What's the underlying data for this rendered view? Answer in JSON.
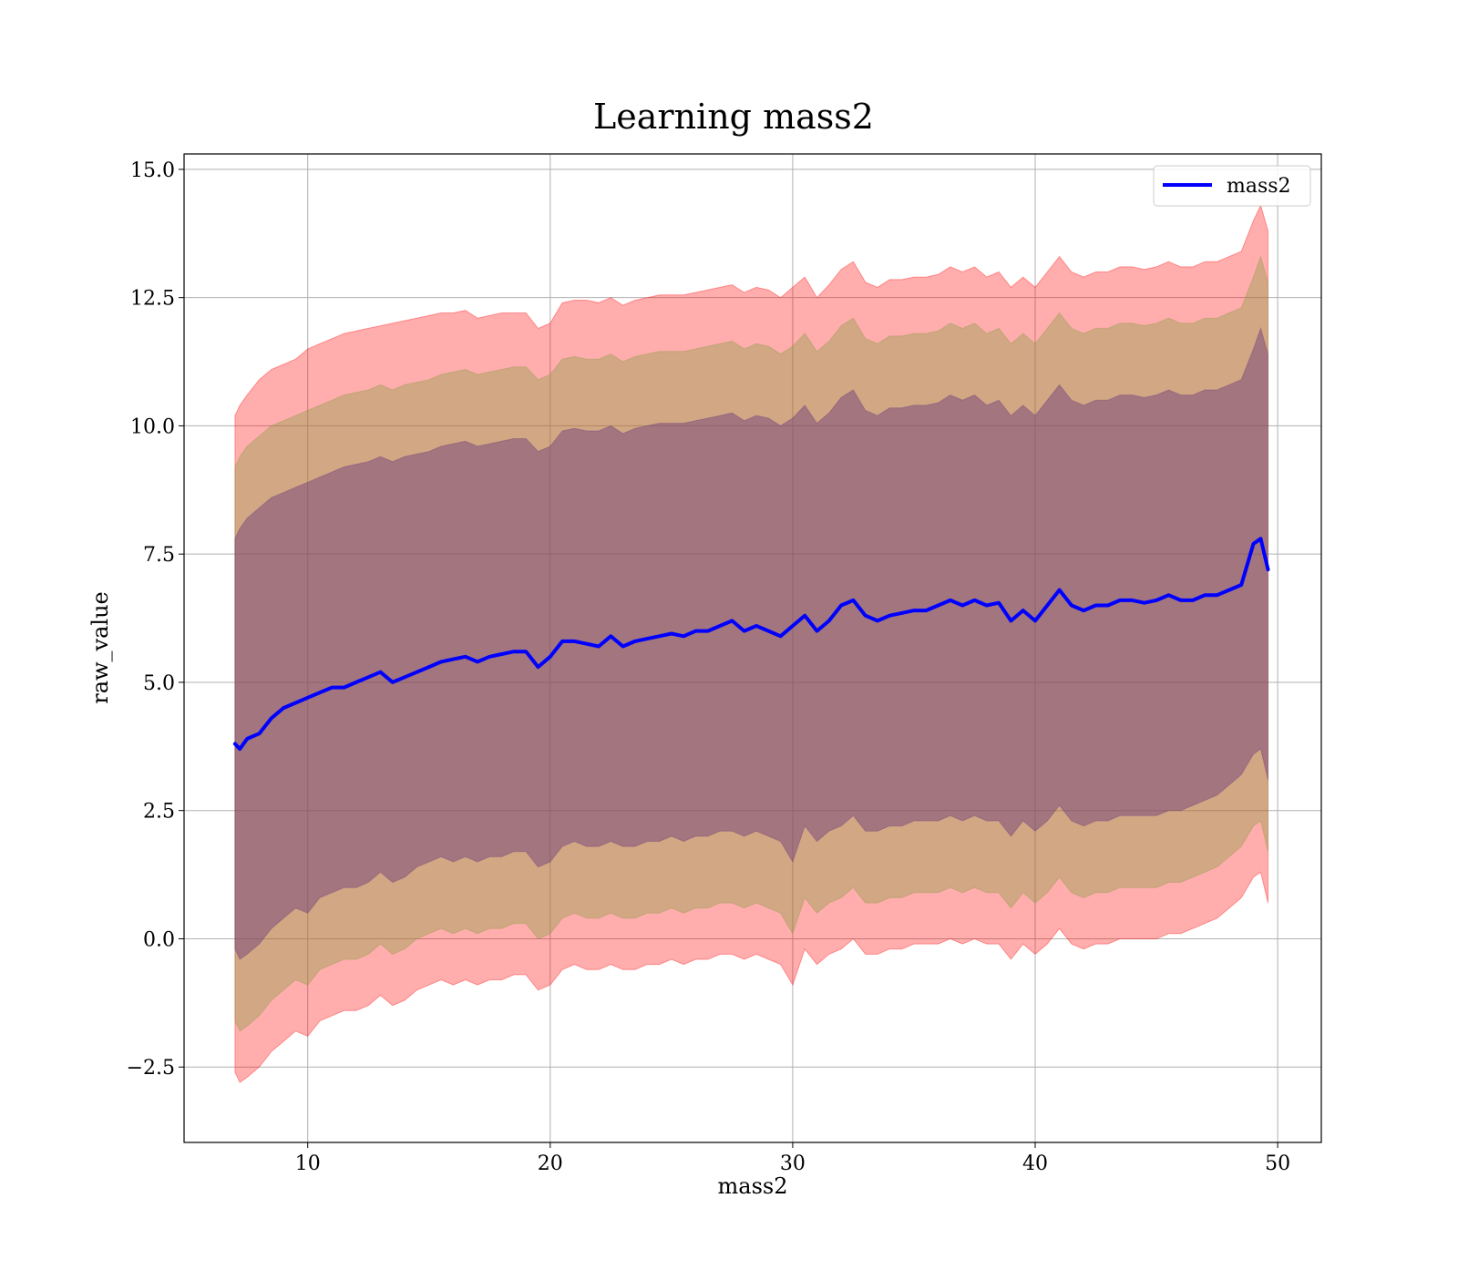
{
  "chart_data": {
    "type": "area",
    "title": "Learning mass2",
    "xlabel": "mass2",
    "ylabel": "raw_value",
    "xlim": [
      4.9,
      51.8
    ],
    "ylim": [
      -3.97,
      15.3
    ],
    "grid": true,
    "legend_position": "upper right",
    "x_ticks": [
      10,
      20,
      30,
      40,
      50
    ],
    "y_ticks": [
      -2.5,
      0.0,
      2.5,
      5.0,
      7.5,
      10.0,
      12.5,
      15.0
    ],
    "x_tick_labels": [
      "10",
      "20",
      "30",
      "40",
      "50"
    ],
    "y_tick_labels": [
      "−2.5",
      "0.0",
      "2.5",
      "5.0",
      "7.5",
      "10.0",
      "12.5",
      "15.0"
    ],
    "legend": [
      {
        "label": "mass2",
        "color": "#0000ff"
      }
    ],
    "mean_series": {
      "name": "mass2",
      "color": "#0000ff",
      "x": [
        7.0,
        7.2,
        7.5,
        8.0,
        8.5,
        9.0,
        9.5,
        10.0,
        10.5,
        11.0,
        11.5,
        12.0,
        12.5,
        13.0,
        13.5,
        14.0,
        14.5,
        15.0,
        15.5,
        16.0,
        16.5,
        17.0,
        17.5,
        18.0,
        18.5,
        19.0,
        19.5,
        20.0,
        20.5,
        21.0,
        21.5,
        22.0,
        22.5,
        23.0,
        23.5,
        24.0,
        24.5,
        25.0,
        25.5,
        26.0,
        26.5,
        27.0,
        27.5,
        28.0,
        28.5,
        29.0,
        29.5,
        30.0,
        30.5,
        31.0,
        31.5,
        32.0,
        32.5,
        33.0,
        33.5,
        34.0,
        34.5,
        35.0,
        35.5,
        36.0,
        36.5,
        37.0,
        37.5,
        38.0,
        38.5,
        39.0,
        39.5,
        40.0,
        40.5,
        41.0,
        41.5,
        42.0,
        42.5,
        43.0,
        43.5,
        44.0,
        44.5,
        45.0,
        45.5,
        46.0,
        46.5,
        47.0,
        47.5,
        48.0,
        48.5,
        49.0,
        49.3,
        49.6
      ],
      "y": [
        3.8,
        3.7,
        3.9,
        4.0,
        4.3,
        4.5,
        4.6,
        4.7,
        4.8,
        4.9,
        4.9,
        5.0,
        5.1,
        5.2,
        5.0,
        5.1,
        5.2,
        5.3,
        5.4,
        5.45,
        5.5,
        5.4,
        5.5,
        5.55,
        5.6,
        5.6,
        5.3,
        5.5,
        5.8,
        5.8,
        5.75,
        5.7,
        5.9,
        5.7,
        5.8,
        5.85,
        5.9,
        5.95,
        5.9,
        6.0,
        6.0,
        6.1,
        6.2,
        6.0,
        6.1,
        6.0,
        5.9,
        6.1,
        6.3,
        6.0,
        6.2,
        6.5,
        6.6,
        6.3,
        6.2,
        6.3,
        6.35,
        6.4,
        6.4,
        6.5,
        6.6,
        6.5,
        6.6,
        6.5,
        6.55,
        6.2,
        6.4,
        6.2,
        6.5,
        6.8,
        6.5,
        6.4,
        6.5,
        6.5,
        6.6,
        6.6,
        6.55,
        6.6,
        6.7,
        6.6,
        6.6,
        6.7,
        6.7,
        6.8,
        6.9,
        7.7,
        7.8,
        7.2
      ]
    },
    "bands": [
      {
        "name": "outer",
        "color": "#ff0000",
        "opacity": 0.32,
        "upper": [
          10.2,
          10.4,
          10.6,
          10.9,
          11.1,
          11.2,
          11.3,
          11.5,
          11.6,
          11.7,
          11.8,
          11.85,
          11.9,
          11.95,
          12.0,
          12.05,
          12.1,
          12.15,
          12.2,
          12.2,
          12.25,
          12.1,
          12.15,
          12.2,
          12.2,
          12.2,
          11.9,
          12.0,
          12.4,
          12.45,
          12.45,
          12.4,
          12.5,
          12.35,
          12.45,
          12.5,
          12.55,
          12.55,
          12.55,
          12.6,
          12.65,
          12.7,
          12.75,
          12.6,
          12.7,
          12.65,
          12.5,
          12.7,
          12.9,
          12.5,
          12.75,
          13.05,
          13.2,
          12.8,
          12.7,
          12.85,
          12.85,
          12.9,
          12.9,
          12.95,
          13.1,
          13.0,
          13.1,
          12.9,
          13.0,
          12.7,
          12.9,
          12.7,
          13.0,
          13.3,
          13.0,
          12.9,
          13.0,
          13.0,
          13.1,
          13.1,
          13.05,
          13.1,
          13.2,
          13.1,
          13.1,
          13.2,
          13.2,
          13.3,
          13.4,
          14.0,
          14.3,
          13.8
        ],
        "lower": [
          -2.6,
          -2.8,
          -2.7,
          -2.5,
          -2.2,
          -2.0,
          -1.8,
          -1.9,
          -1.6,
          -1.5,
          -1.4,
          -1.4,
          -1.3,
          -1.1,
          -1.3,
          -1.2,
          -1.0,
          -0.9,
          -0.8,
          -0.9,
          -0.8,
          -0.9,
          -0.8,
          -0.8,
          -0.7,
          -0.7,
          -1.0,
          -0.9,
          -0.6,
          -0.5,
          -0.6,
          -0.6,
          -0.5,
          -0.6,
          -0.6,
          -0.5,
          -0.5,
          -0.4,
          -0.5,
          -0.4,
          -0.4,
          -0.3,
          -0.3,
          -0.4,
          -0.3,
          -0.4,
          -0.5,
          -0.9,
          -0.2,
          -0.5,
          -0.3,
          -0.2,
          0.0,
          -0.3,
          -0.3,
          -0.2,
          -0.2,
          -0.1,
          -0.1,
          -0.1,
          0.0,
          -0.1,
          0.0,
          -0.1,
          -0.1,
          -0.4,
          -0.1,
          -0.3,
          -0.1,
          0.2,
          -0.1,
          -0.2,
          -0.1,
          -0.1,
          0.0,
          0.0,
          0.0,
          0.0,
          0.1,
          0.1,
          0.2,
          0.3,
          0.4,
          0.6,
          0.8,
          1.2,
          1.3,
          0.7
        ]
      },
      {
        "name": "middle",
        "color": "#8c9e45",
        "opacity": 0.4,
        "upper": [
          9.2,
          9.4,
          9.6,
          9.8,
          10.0,
          10.1,
          10.2,
          10.3,
          10.4,
          10.5,
          10.6,
          10.65,
          10.7,
          10.8,
          10.7,
          10.8,
          10.85,
          10.9,
          11.0,
          11.05,
          11.1,
          11.0,
          11.05,
          11.1,
          11.15,
          11.15,
          10.9,
          11.0,
          11.3,
          11.35,
          11.3,
          11.3,
          11.4,
          11.25,
          11.35,
          11.4,
          11.45,
          11.45,
          11.45,
          11.5,
          11.55,
          11.6,
          11.65,
          11.5,
          11.6,
          11.55,
          11.4,
          11.55,
          11.8,
          11.45,
          11.65,
          11.95,
          12.1,
          11.7,
          11.6,
          11.75,
          11.75,
          11.8,
          11.8,
          11.85,
          12.0,
          11.9,
          12.0,
          11.8,
          11.9,
          11.6,
          11.8,
          11.6,
          11.9,
          12.2,
          11.9,
          11.8,
          11.9,
          11.9,
          12.0,
          12.0,
          11.95,
          12.0,
          12.1,
          12.0,
          12.0,
          12.1,
          12.1,
          12.2,
          12.3,
          12.9,
          13.3,
          12.8
        ],
        "lower": [
          -1.6,
          -1.8,
          -1.7,
          -1.5,
          -1.2,
          -1.0,
          -0.8,
          -0.9,
          -0.6,
          -0.5,
          -0.4,
          -0.4,
          -0.3,
          -0.1,
          -0.3,
          -0.2,
          0.0,
          0.1,
          0.2,
          0.1,
          0.2,
          0.1,
          0.2,
          0.2,
          0.3,
          0.3,
          0.0,
          0.1,
          0.4,
          0.5,
          0.4,
          0.4,
          0.5,
          0.4,
          0.4,
          0.5,
          0.5,
          0.6,
          0.5,
          0.6,
          0.6,
          0.7,
          0.7,
          0.6,
          0.7,
          0.6,
          0.5,
          0.1,
          0.8,
          0.5,
          0.7,
          0.8,
          1.0,
          0.7,
          0.7,
          0.8,
          0.8,
          0.9,
          0.9,
          0.9,
          1.0,
          0.9,
          1.0,
          0.9,
          0.9,
          0.6,
          0.9,
          0.7,
          0.9,
          1.2,
          0.9,
          0.8,
          0.9,
          0.9,
          1.0,
          1.0,
          1.0,
          1.0,
          1.1,
          1.1,
          1.2,
          1.3,
          1.4,
          1.6,
          1.8,
          2.2,
          2.3,
          1.7
        ]
      },
      {
        "name": "inner",
        "color": "#6b3a7a",
        "opacity": 0.45,
        "upper": [
          7.8,
          8.0,
          8.2,
          8.4,
          8.6,
          8.7,
          8.8,
          8.9,
          9.0,
          9.1,
          9.2,
          9.25,
          9.3,
          9.4,
          9.3,
          9.4,
          9.45,
          9.5,
          9.6,
          9.65,
          9.7,
          9.6,
          9.65,
          9.7,
          9.75,
          9.75,
          9.5,
          9.6,
          9.9,
          9.95,
          9.9,
          9.9,
          10.0,
          9.85,
          9.95,
          10.0,
          10.05,
          10.05,
          10.05,
          10.1,
          10.15,
          10.2,
          10.25,
          10.1,
          10.2,
          10.15,
          10.0,
          10.15,
          10.4,
          10.05,
          10.25,
          10.55,
          10.7,
          10.3,
          10.2,
          10.35,
          10.35,
          10.4,
          10.4,
          10.45,
          10.6,
          10.5,
          10.6,
          10.4,
          10.5,
          10.2,
          10.4,
          10.2,
          10.5,
          10.8,
          10.5,
          10.4,
          10.5,
          10.5,
          10.6,
          10.6,
          10.55,
          10.6,
          10.7,
          10.6,
          10.6,
          10.7,
          10.7,
          10.8,
          10.9,
          11.5,
          11.9,
          11.4
        ],
        "lower": [
          -0.2,
          -0.4,
          -0.3,
          -0.1,
          0.2,
          0.4,
          0.6,
          0.5,
          0.8,
          0.9,
          1.0,
          1.0,
          1.1,
          1.3,
          1.1,
          1.2,
          1.4,
          1.5,
          1.6,
          1.5,
          1.6,
          1.5,
          1.6,
          1.6,
          1.7,
          1.7,
          1.4,
          1.5,
          1.8,
          1.9,
          1.8,
          1.8,
          1.9,
          1.8,
          1.8,
          1.9,
          1.9,
          2.0,
          1.9,
          2.0,
          2.0,
          2.1,
          2.1,
          2.0,
          2.1,
          2.0,
          1.9,
          1.5,
          2.2,
          1.9,
          2.1,
          2.2,
          2.4,
          2.1,
          2.1,
          2.2,
          2.2,
          2.3,
          2.3,
          2.3,
          2.4,
          2.3,
          2.4,
          2.3,
          2.3,
          2.0,
          2.3,
          2.1,
          2.3,
          2.6,
          2.3,
          2.2,
          2.3,
          2.3,
          2.4,
          2.4,
          2.4,
          2.4,
          2.5,
          2.5,
          2.6,
          2.7,
          2.8,
          3.0,
          3.2,
          3.6,
          3.7,
          3.1
        ]
      }
    ]
  }
}
